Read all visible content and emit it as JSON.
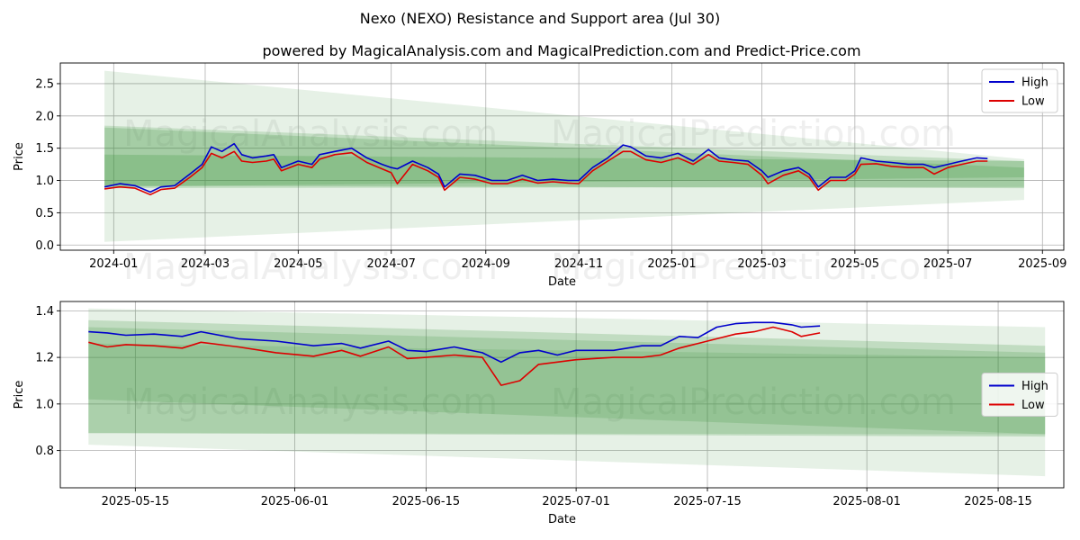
{
  "title": "Nexo (NEXO) Resistance and Support area (Jul 30)",
  "subtitle": "powered by MagicalAnalysis.com and MagicalPrediction.com and Predict-Price.com",
  "watermarks": [
    "MagicalAnalysis.com",
    "MagicalPrediction.com"
  ],
  "colors": {
    "high": "#0000cc",
    "low": "#dd0000",
    "band": "#2e8b2e"
  },
  "chart_data": [
    {
      "type": "line",
      "xlabel": "Date",
      "ylabel": "Price",
      "xlim": [
        "2023-11-27",
        "2025-09-15"
      ],
      "ylim": [
        -0.08,
        2.82
      ],
      "x_ticks": [
        {
          "date": "2024-01-01",
          "label": "2024-01"
        },
        {
          "date": "2024-03-01",
          "label": "2024-03"
        },
        {
          "date": "2024-05-01",
          "label": "2024-05"
        },
        {
          "date": "2024-07-01",
          "label": "2024-07"
        },
        {
          "date": "2024-09-01",
          "label": "2024-09"
        },
        {
          "date": "2024-11-01",
          "label": "2024-11"
        },
        {
          "date": "2025-01-01",
          "label": "2025-01"
        },
        {
          "date": "2025-03-01",
          "label": "2025-03"
        },
        {
          "date": "2025-05-01",
          "label": "2025-05"
        },
        {
          "date": "2025-07-01",
          "label": "2025-07"
        },
        {
          "date": "2025-09-01",
          "label": "2025-09"
        }
      ],
      "y_ticks": [
        {
          "value": 0.0,
          "label": "0.0"
        },
        {
          "value": 0.5,
          "label": "0.5"
        },
        {
          "value": 1.0,
          "label": "1.0"
        },
        {
          "value": 1.5,
          "label": "1.5"
        },
        {
          "value": 2.0,
          "label": "2.0"
        },
        {
          "value": 2.5,
          "label": "2.5"
        }
      ],
      "grid": true,
      "legend": "top-right",
      "bands": [
        {
          "x": [
            "2023-12-26",
            "2025-08-20"
          ],
          "top": [
            2.7,
            1.33
          ],
          "bottom": [
            0.05,
            0.7
          ],
          "opacity": 0.12
        },
        {
          "x": [
            "2023-12-26",
            "2025-08-20"
          ],
          "top": [
            1.85,
            1.3
          ],
          "bottom": [
            0.88,
            0.9
          ],
          "opacity": 0.18
        },
        {
          "x": [
            "2023-12-26",
            "2025-08-20"
          ],
          "top": [
            1.82,
            1.2
          ],
          "bottom": [
            0.9,
            1.05
          ],
          "opacity": 0.2
        },
        {
          "x": [
            "2023-12-26",
            "2025-08-20"
          ],
          "top": [
            1.4,
            1.3
          ],
          "bottom": [
            0.92,
            0.88
          ],
          "opacity": 0.22
        }
      ],
      "series": [
        {
          "name": "High",
          "color": "#0000cc",
          "x": [
            "2023-12-26",
            "2024-01-05",
            "2024-01-15",
            "2024-01-25",
            "2024-02-01",
            "2024-02-10",
            "2024-02-20",
            "2024-02-28",
            "2024-03-05",
            "2024-03-12",
            "2024-03-20",
            "2024-03-25",
            "2024-04-01",
            "2024-04-10",
            "2024-04-15",
            "2024-04-20",
            "2024-05-01",
            "2024-05-10",
            "2024-05-15",
            "2024-05-25",
            "2024-06-05",
            "2024-06-15",
            "2024-06-25",
            "2024-07-01",
            "2024-07-05",
            "2024-07-15",
            "2024-07-25",
            "2024-08-01",
            "2024-08-05",
            "2024-08-15",
            "2024-08-25",
            "2024-09-05",
            "2024-09-15",
            "2024-09-25",
            "2024-10-05",
            "2024-10-15",
            "2024-10-25",
            "2024-11-01",
            "2024-11-10",
            "2024-11-20",
            "2024-11-30",
            "2024-12-05",
            "2024-12-15",
            "2024-12-25",
            "2025-01-05",
            "2025-01-15",
            "2025-01-25",
            "2025-02-01",
            "2025-02-10",
            "2025-02-20",
            "2025-03-01",
            "2025-03-05",
            "2025-03-15",
            "2025-03-25",
            "2025-04-01",
            "2025-04-07",
            "2025-04-15",
            "2025-04-25",
            "2025-05-01",
            "2025-05-05",
            "2025-05-15",
            "2025-05-25",
            "2025-06-05",
            "2025-06-15",
            "2025-06-22",
            "2025-07-01",
            "2025-07-10",
            "2025-07-20",
            "2025-07-27"
          ],
          "values": [
            0.9,
            0.95,
            0.92,
            0.82,
            0.9,
            0.92,
            1.1,
            1.25,
            1.52,
            1.45,
            1.57,
            1.4,
            1.35,
            1.38,
            1.4,
            1.2,
            1.3,
            1.25,
            1.4,
            1.45,
            1.5,
            1.35,
            1.25,
            1.2,
            1.18,
            1.3,
            1.2,
            1.1,
            0.9,
            1.1,
            1.08,
            1.0,
            1.0,
            1.08,
            1.0,
            1.02,
            1.0,
            1.0,
            1.2,
            1.35,
            1.55,
            1.52,
            1.38,
            1.35,
            1.42,
            1.3,
            1.48,
            1.35,
            1.32,
            1.3,
            1.15,
            1.05,
            1.15,
            1.2,
            1.1,
            0.9,
            1.05,
            1.05,
            1.15,
            1.35,
            1.3,
            1.28,
            1.25,
            1.25,
            1.2,
            1.25,
            1.3,
            1.35,
            1.34
          ]
        },
        {
          "name": "Low",
          "color": "#dd0000",
          "x": [
            "2023-12-26",
            "2024-01-05",
            "2024-01-15",
            "2024-01-25",
            "2024-02-01",
            "2024-02-10",
            "2024-02-20",
            "2024-02-28",
            "2024-03-05",
            "2024-03-12",
            "2024-03-20",
            "2024-03-25",
            "2024-04-01",
            "2024-04-10",
            "2024-04-15",
            "2024-04-20",
            "2024-05-01",
            "2024-05-10",
            "2024-05-15",
            "2024-05-25",
            "2024-06-05",
            "2024-06-15",
            "2024-06-25",
            "2024-07-01",
            "2024-07-05",
            "2024-07-15",
            "2024-07-25",
            "2024-08-01",
            "2024-08-05",
            "2024-08-15",
            "2024-08-25",
            "2024-09-05",
            "2024-09-15",
            "2024-09-25",
            "2024-10-05",
            "2024-10-15",
            "2024-10-25",
            "2024-11-01",
            "2024-11-10",
            "2024-11-20",
            "2024-11-30",
            "2024-12-05",
            "2024-12-15",
            "2024-12-25",
            "2025-01-05",
            "2025-01-15",
            "2025-01-25",
            "2025-02-01",
            "2025-02-10",
            "2025-02-20",
            "2025-03-01",
            "2025-03-05",
            "2025-03-15",
            "2025-03-25",
            "2025-04-01",
            "2025-04-07",
            "2025-04-15",
            "2025-04-25",
            "2025-05-01",
            "2025-05-05",
            "2025-05-15",
            "2025-05-25",
            "2025-06-05",
            "2025-06-15",
            "2025-06-22",
            "2025-07-01",
            "2025-07-10",
            "2025-07-20",
            "2025-07-27"
          ],
          "values": [
            0.87,
            0.9,
            0.88,
            0.78,
            0.86,
            0.88,
            1.05,
            1.2,
            1.42,
            1.35,
            1.45,
            1.3,
            1.28,
            1.3,
            1.33,
            1.15,
            1.25,
            1.2,
            1.33,
            1.4,
            1.43,
            1.28,
            1.18,
            1.12,
            0.95,
            1.25,
            1.15,
            1.05,
            0.85,
            1.05,
            1.02,
            0.95,
            0.95,
            1.02,
            0.96,
            0.98,
            0.96,
            0.95,
            1.15,
            1.3,
            1.45,
            1.45,
            1.32,
            1.28,
            1.35,
            1.25,
            1.4,
            1.3,
            1.28,
            1.25,
            1.08,
            0.95,
            1.08,
            1.15,
            1.05,
            0.85,
            1.0,
            1.0,
            1.1,
            1.25,
            1.26,
            1.22,
            1.2,
            1.2,
            1.1,
            1.2,
            1.25,
            1.3,
            1.3
          ]
        }
      ]
    },
    {
      "type": "line",
      "xlabel": "Date",
      "ylabel": "Price",
      "xlim": [
        "2025-05-07",
        "2025-08-22"
      ],
      "ylim": [
        0.64,
        1.44
      ],
      "x_ticks": [
        {
          "date": "2025-05-15",
          "label": "2025-05-15"
        },
        {
          "date": "2025-06-01",
          "label": "2025-06-01"
        },
        {
          "date": "2025-06-15",
          "label": "2025-06-15"
        },
        {
          "date": "2025-07-01",
          "label": "2025-07-01"
        },
        {
          "date": "2025-07-15",
          "label": "2025-07-15"
        },
        {
          "date": "2025-08-01",
          "label": "2025-08-01"
        },
        {
          "date": "2025-08-15",
          "label": "2025-08-15"
        }
      ],
      "y_ticks": [
        {
          "value": 0.8,
          "label": "0.8"
        },
        {
          "value": 1.0,
          "label": "1.0"
        },
        {
          "value": 1.2,
          "label": "1.2"
        },
        {
          "value": 1.4,
          "label": "1.4"
        }
      ],
      "grid": true,
      "legend": "center-right",
      "bands": [
        {
          "x": [
            "2025-05-10",
            "2025-08-20"
          ],
          "top": [
            1.41,
            1.33
          ],
          "bottom": [
            0.825,
            0.69
          ],
          "opacity": 0.12
        },
        {
          "x": [
            "2025-05-10",
            "2025-08-20"
          ],
          "top": [
            1.36,
            1.25
          ],
          "bottom": [
            0.875,
            0.86
          ],
          "opacity": 0.2
        },
        {
          "x": [
            "2025-05-10",
            "2025-08-20"
          ],
          "top": [
            1.33,
            1.22
          ],
          "bottom": [
            1.02,
            0.87
          ],
          "opacity": 0.18
        },
        {
          "x": [
            "2025-05-10",
            "2025-08-20"
          ],
          "top": [
            1.26,
            1.2
          ],
          "bottom": [
            0.875,
            0.87
          ],
          "opacity": 0.15
        }
      ],
      "series": [
        {
          "name": "High",
          "color": "#0000cc",
          "x": [
            "2025-05-10",
            "2025-05-12",
            "2025-05-14",
            "2025-05-17",
            "2025-05-20",
            "2025-05-22",
            "2025-05-26",
            "2025-05-30",
            "2025-06-03",
            "2025-06-06",
            "2025-06-08",
            "2025-06-11",
            "2025-06-13",
            "2025-06-15",
            "2025-06-18",
            "2025-06-21",
            "2025-06-23",
            "2025-06-25",
            "2025-06-27",
            "2025-06-29",
            "2025-07-01",
            "2025-07-05",
            "2025-07-08",
            "2025-07-10",
            "2025-07-12",
            "2025-07-14",
            "2025-07-16",
            "2025-07-18",
            "2025-07-20",
            "2025-07-22",
            "2025-07-24",
            "2025-07-25",
            "2025-07-27"
          ],
          "values": [
            1.31,
            1.305,
            1.295,
            1.3,
            1.29,
            1.31,
            1.28,
            1.27,
            1.25,
            1.26,
            1.24,
            1.27,
            1.23,
            1.225,
            1.245,
            1.22,
            1.18,
            1.22,
            1.23,
            1.21,
            1.23,
            1.23,
            1.25,
            1.25,
            1.29,
            1.285,
            1.33,
            1.345,
            1.35,
            1.35,
            1.34,
            1.33,
            1.335
          ]
        },
        {
          "name": "Low",
          "color": "#dd0000",
          "x": [
            "2025-05-10",
            "2025-05-12",
            "2025-05-14",
            "2025-05-17",
            "2025-05-20",
            "2025-05-22",
            "2025-05-26",
            "2025-05-30",
            "2025-06-03",
            "2025-06-06",
            "2025-06-08",
            "2025-06-11",
            "2025-06-13",
            "2025-06-15",
            "2025-06-18",
            "2025-06-21",
            "2025-06-23",
            "2025-06-25",
            "2025-06-27",
            "2025-06-29",
            "2025-07-01",
            "2025-07-05",
            "2025-07-08",
            "2025-07-10",
            "2025-07-12",
            "2025-07-14",
            "2025-07-16",
            "2025-07-18",
            "2025-07-20",
            "2025-07-22",
            "2025-07-24",
            "2025-07-25",
            "2025-07-27"
          ],
          "values": [
            1.265,
            1.245,
            1.255,
            1.25,
            1.24,
            1.265,
            1.245,
            1.22,
            1.205,
            1.23,
            1.205,
            1.245,
            1.195,
            1.2,
            1.21,
            1.2,
            1.08,
            1.1,
            1.17,
            1.18,
            1.19,
            1.2,
            1.2,
            1.21,
            1.24,
            1.26,
            1.28,
            1.3,
            1.31,
            1.33,
            1.31,
            1.29,
            1.305
          ]
        }
      ]
    }
  ]
}
